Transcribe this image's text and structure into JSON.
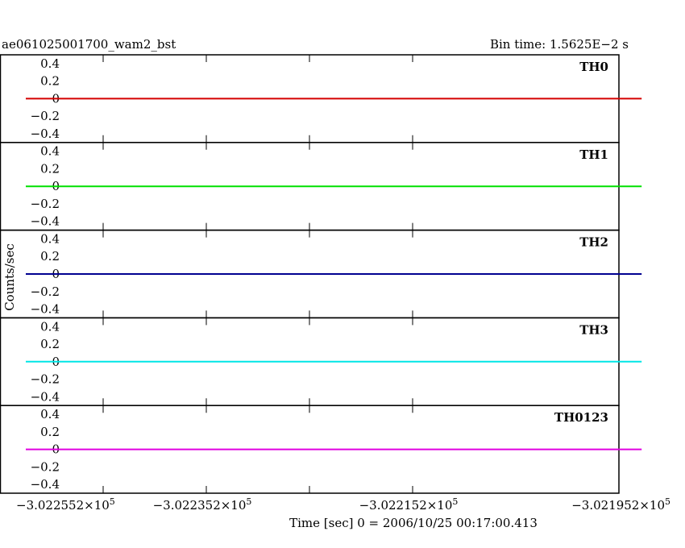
{
  "header": {
    "title": "ae061025001700_wam2_bst",
    "bin_time": "Bin time: 1.5625E−2 s"
  },
  "chart_data": {
    "type": "line",
    "ylabel": "Counts/sec",
    "xlabel": "Time [sec] 0 = 2006/10/25 00:17:00.413",
    "xlim": [
      -302255.2,
      -302195.2
    ],
    "x_ticks": [
      {
        "value": -302255.2,
        "mantissa": "−3.022552×10",
        "exp": "5"
      },
      {
        "value": -302235.2,
        "mantissa": "−3.022352×10",
        "exp": "5"
      },
      {
        "value": -302215.2,
        "mantissa": "−3.022152×10",
        "exp": "5"
      },
      {
        "value": -302195.2,
        "mantissa": "−3.021952×10",
        "exp": "5"
      }
    ],
    "x_tick_marks": [
      -302255.2,
      -302245.2,
      -302235.2,
      -302225.2,
      -302215.2
    ],
    "ylim": [
      -0.5,
      0.5
    ],
    "y_ticks": [
      "0.4",
      "0.2",
      "0",
      "−0.2",
      "−0.4"
    ],
    "y_tick_values": [
      0.4,
      0.2,
      0,
      -0.2,
      -0.4
    ],
    "series": [
      {
        "name": "TH0",
        "color": "#d40000",
        "x": [
          -302252.7,
          -302193.0
        ],
        "y": [
          0,
          0
        ]
      },
      {
        "name": "TH1",
        "color": "#00e000",
        "x": [
          -302252.7,
          -302193.0
        ],
        "y": [
          0,
          0
        ]
      },
      {
        "name": "TH2",
        "color": "#000090",
        "x": [
          -302252.7,
          -302193.0
        ],
        "y": [
          0,
          0
        ]
      },
      {
        "name": "TH3",
        "color": "#00e6e6",
        "x": [
          -302252.7,
          -302193.0
        ],
        "y": [
          0,
          0
        ]
      },
      {
        "name": "TH0123",
        "color": "#e000e0",
        "x": [
          -302252.7,
          -302193.0
        ],
        "y": [
          0,
          0
        ]
      }
    ],
    "grid": false
  }
}
